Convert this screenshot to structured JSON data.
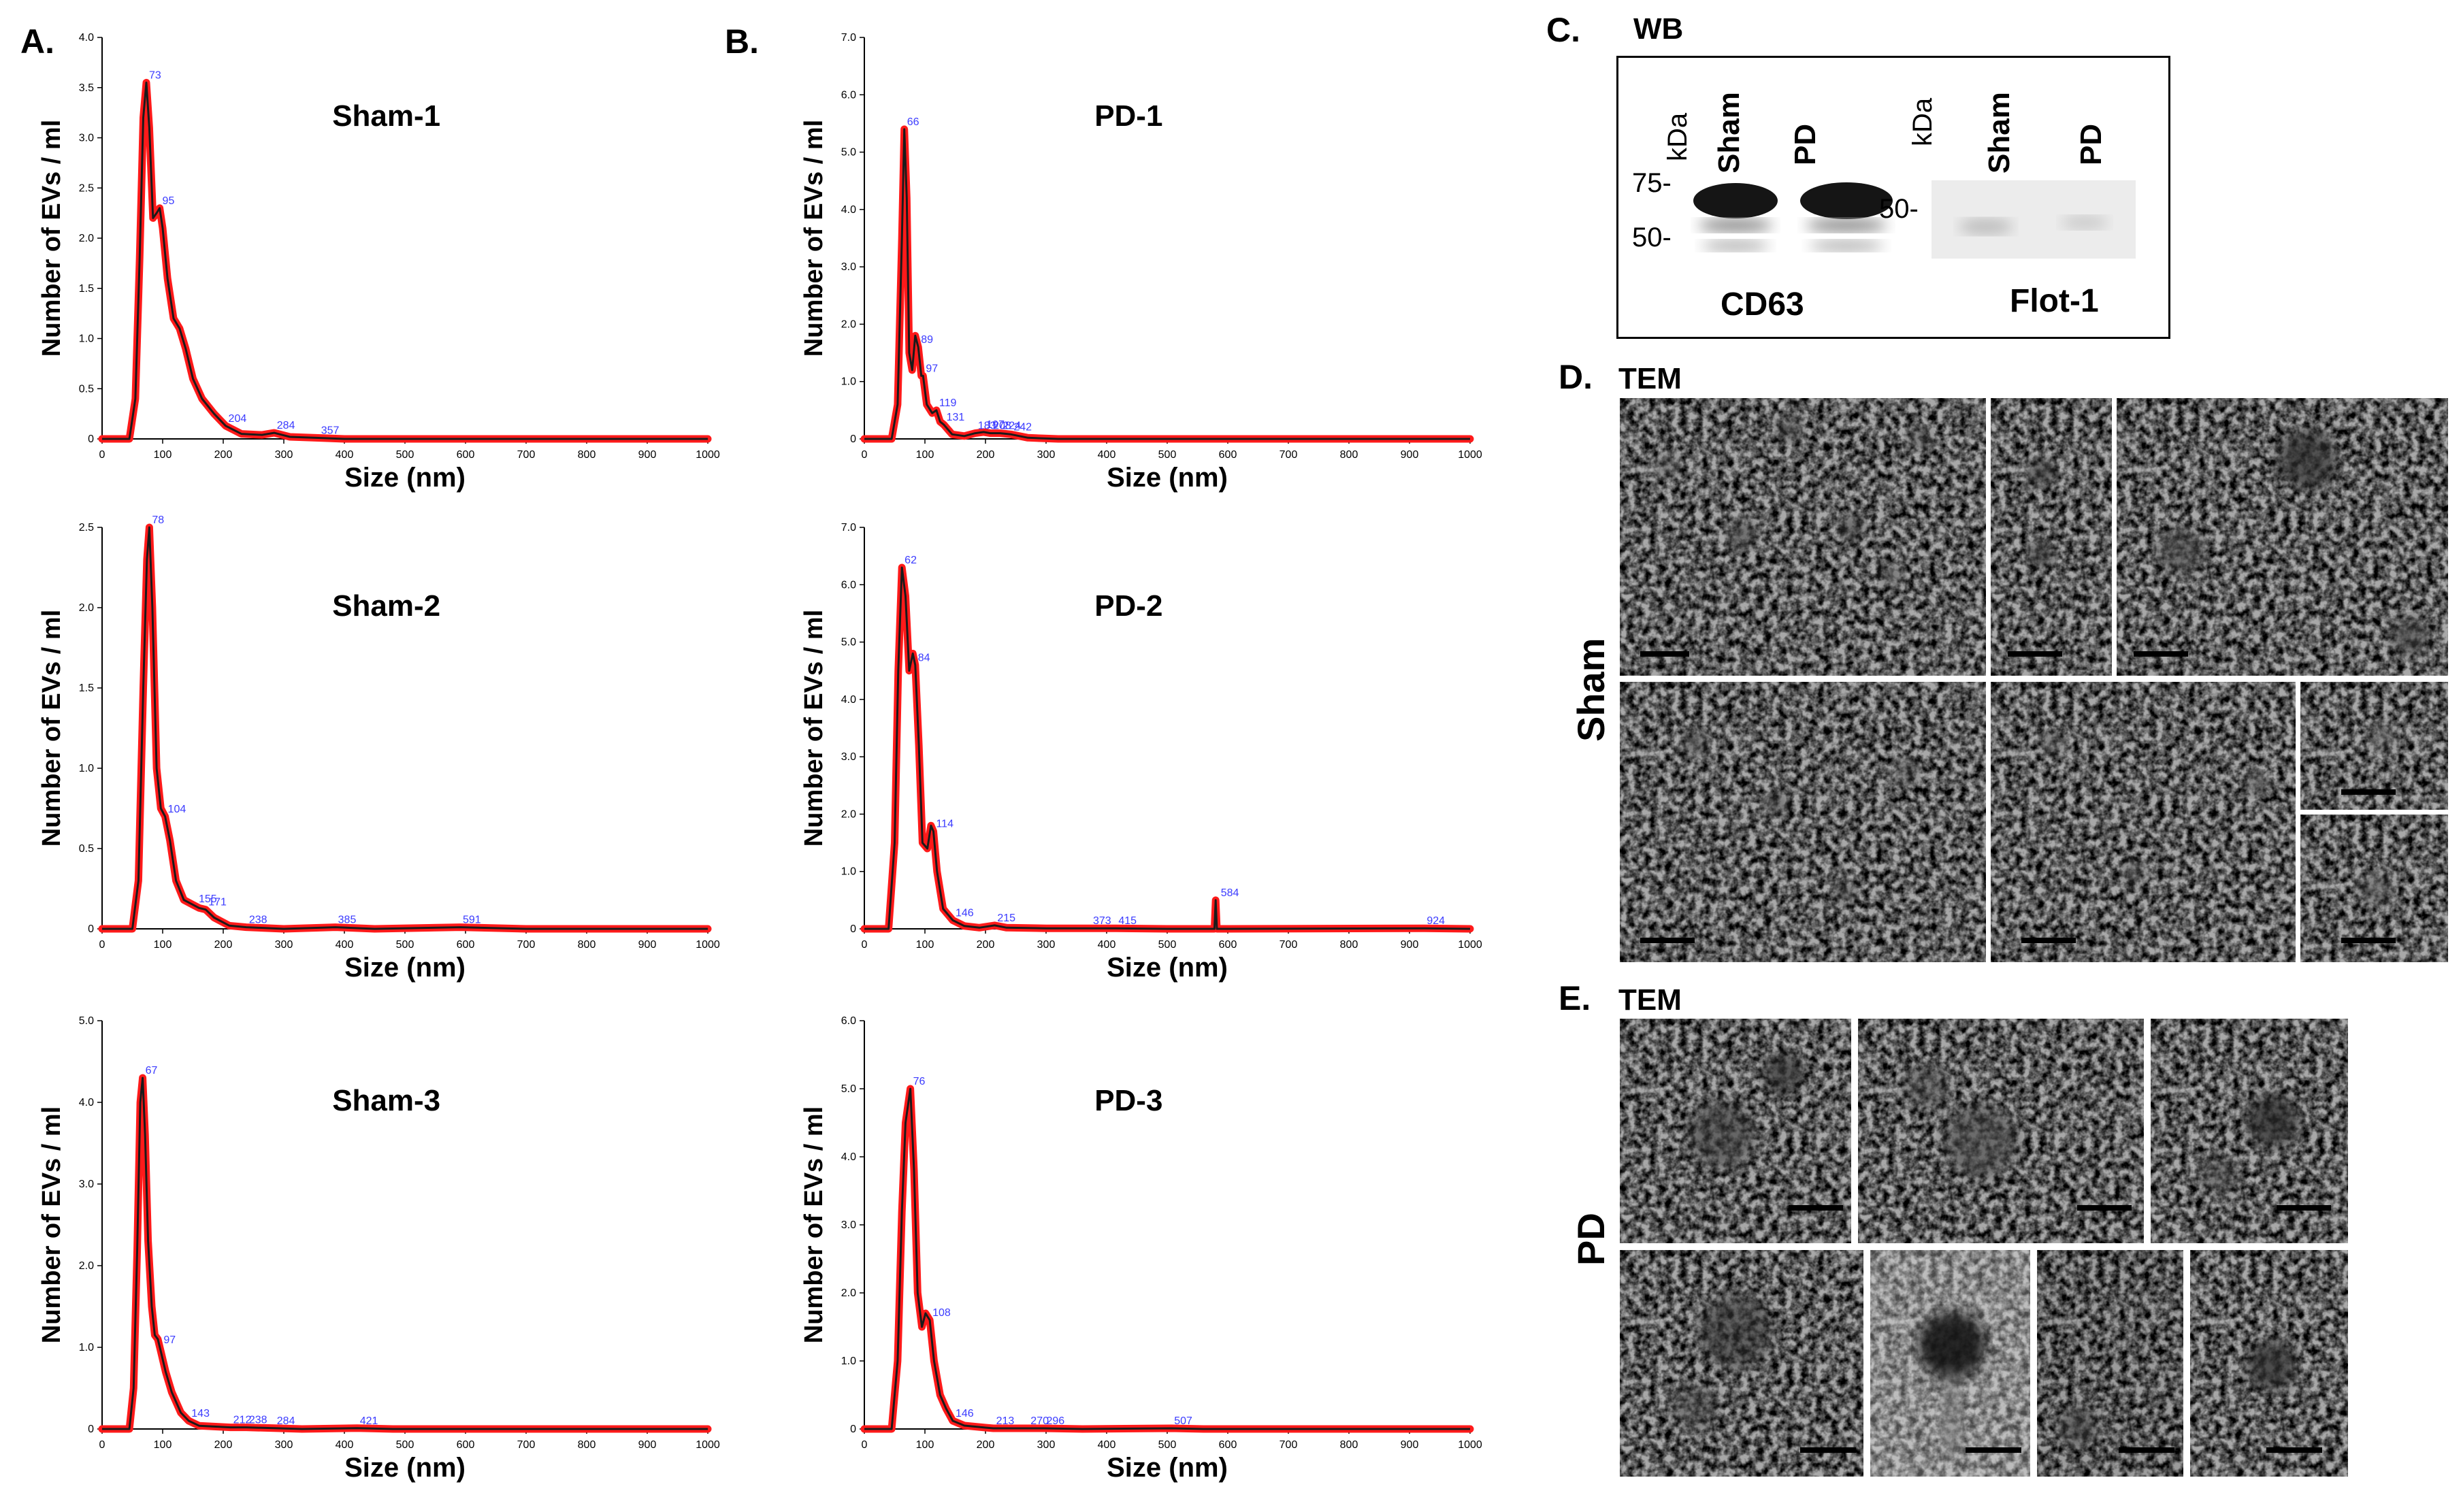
{
  "panels": {
    "A": {
      "letter": "A."
    },
    "B": {
      "letter": "B."
    },
    "C": {
      "letter": "C.",
      "title": "WB"
    },
    "D": {
      "letter": "D.",
      "title": "TEM",
      "side_label": "Sham"
    },
    "E": {
      "letter": "E.",
      "title": "TEM",
      "side_label": "PD"
    }
  },
  "western_blot": {
    "unit": "kDa",
    "left": {
      "lanes": [
        "Sham",
        "PD"
      ],
      "markers": [
        "75-",
        "50-"
      ],
      "protein": "CD63"
    },
    "right": {
      "lanes": [
        "Sham",
        "PD"
      ],
      "markers": [
        "50-"
      ],
      "protein": "Flot-1"
    }
  },
  "colors": {
    "band": "#ff1a1a",
    "mean_line": "#1a1a1a",
    "peak_label": "#3b3bff",
    "tem_gray": "#a8a8a8"
  },
  "chart_data": [
    {
      "id": "sham1",
      "type": "line",
      "title": "Sham-1",
      "xlabel": "Size (nm)",
      "ylabel": "Number of EVs / ml",
      "xlim": [
        0,
        1000
      ],
      "ylim": [
        0,
        4.0
      ],
      "xticks": [
        "0",
        "100",
        "200",
        "300",
        "400",
        "500",
        "600",
        "700",
        "800",
        "900",
        "1000"
      ],
      "yticks": [
        "0",
        "0.5",
        "1.0",
        "1.5",
        "2.0",
        "2.5",
        "3.0",
        "3.5",
        "4.0"
      ],
      "series": [
        {
          "points": [
            [
              0,
              0
            ],
            [
              45,
              0
            ],
            [
              55,
              0.4
            ],
            [
              62,
              1.8
            ],
            [
              68,
              3.2
            ],
            [
              73,
              3.55
            ],
            [
              78,
              3.1
            ],
            [
              84,
              2.2
            ],
            [
              90,
              2.25
            ],
            [
              95,
              2.3
            ],
            [
              100,
              2.1
            ],
            [
              108,
              1.6
            ],
            [
              118,
              1.2
            ],
            [
              128,
              1.1
            ],
            [
              138,
              0.9
            ],
            [
              150,
              0.6
            ],
            [
              165,
              0.4
            ],
            [
              185,
              0.25
            ],
            [
              204,
              0.13
            ],
            [
              230,
              0.05
            ],
            [
              264,
              0.04
            ],
            [
              284,
              0.06
            ],
            [
              310,
              0.02
            ],
            [
              357,
              0.01
            ],
            [
              400,
              0
            ],
            [
              1000,
              0
            ]
          ]
        }
      ],
      "peaks": [
        {
          "x": 73,
          "y": 3.55,
          "label": "73"
        },
        {
          "x": 95,
          "y": 2.3,
          "label": "95"
        },
        {
          "x": 204,
          "y": 0.13,
          "label": "204"
        },
        {
          "x": 284,
          "y": 0.06,
          "label": "284"
        },
        {
          "x": 357,
          "y": 0.01,
          "label": "357"
        }
      ]
    },
    {
      "id": "sham2",
      "type": "line",
      "title": "Sham-2",
      "xlabel": "Size (nm)",
      "ylabel": "Number of EVs / ml",
      "xlim": [
        0,
        1000
      ],
      "ylim": [
        0,
        2.5
      ],
      "xticks": [
        "0",
        "100",
        "200",
        "300",
        "400",
        "500",
        "600",
        "700",
        "800",
        "900",
        "1000"
      ],
      "yticks": [
        "0",
        "0.5",
        "1.0",
        "1.5",
        "2.0",
        "2.5"
      ],
      "series": [
        {
          "points": [
            [
              0,
              0
            ],
            [
              50,
              0
            ],
            [
              60,
              0.3
            ],
            [
              68,
              1.5
            ],
            [
              74,
              2.3
            ],
            [
              78,
              2.5
            ],
            [
              83,
              2.0
            ],
            [
              90,
              1.0
            ],
            [
              97,
              0.75
            ],
            [
              104,
              0.7
            ],
            [
              112,
              0.55
            ],
            [
              122,
              0.3
            ],
            [
              135,
              0.18
            ],
            [
              150,
              0.15
            ],
            [
              160,
              0.13
            ],
            [
              171,
              0.12
            ],
            [
              185,
              0.07
            ],
            [
              210,
              0.02
            ],
            [
              238,
              0.01
            ],
            [
              300,
              0
            ],
            [
              385,
              0.01
            ],
            [
              450,
              0
            ],
            [
              591,
              0.01
            ],
            [
              700,
              0
            ],
            [
              1000,
              0
            ]
          ]
        }
      ],
      "peaks": [
        {
          "x": 78,
          "y": 2.5,
          "label": "78"
        },
        {
          "x": 104,
          "y": 0.7,
          "label": "104"
        },
        {
          "x": 155,
          "y": 0.14,
          "label": "155"
        },
        {
          "x": 171,
          "y": 0.12,
          "label": "171"
        },
        {
          "x": 238,
          "y": 0.01,
          "label": "238"
        },
        {
          "x": 385,
          "y": 0.01,
          "label": "385"
        },
        {
          "x": 591,
          "y": 0.01,
          "label": "591"
        }
      ]
    },
    {
      "id": "sham3",
      "type": "line",
      "title": "Sham-3",
      "xlabel": "Size (nm)",
      "ylabel": "Number of EVs / ml",
      "xlim": [
        0,
        1000
      ],
      "ylim": [
        0,
        5.0
      ],
      "xticks": [
        "0",
        "100",
        "200",
        "300",
        "400",
        "500",
        "600",
        "700",
        "800",
        "900",
        "1000"
      ],
      "yticks": [
        "0",
        "1.0",
        "2.0",
        "3.0",
        "4.0",
        "5.0"
      ],
      "series": [
        {
          "points": [
            [
              0,
              0
            ],
            [
              45,
              0
            ],
            [
              52,
              0.5
            ],
            [
              58,
              2.2
            ],
            [
              63,
              4.0
            ],
            [
              67,
              4.3
            ],
            [
              71,
              3.6
            ],
            [
              76,
              2.3
            ],
            [
              82,
              1.5
            ],
            [
              87,
              1.15
            ],
            [
              92,
              1.1
            ],
            [
              97,
              0.95
            ],
            [
              105,
              0.7
            ],
            [
              115,
              0.45
            ],
            [
              130,
              0.2
            ],
            [
              143,
              0.1
            ],
            [
              160,
              0.04
            ],
            [
              212,
              0.02
            ],
            [
              238,
              0.02
            ],
            [
              284,
              0.01
            ],
            [
              330,
              0
            ],
            [
              421,
              0.01
            ],
            [
              480,
              0
            ],
            [
              1000,
              0
            ]
          ]
        }
      ],
      "peaks": [
        {
          "x": 67,
          "y": 4.3,
          "label": "67"
        },
        {
          "x": 97,
          "y": 1.0,
          "label": "97"
        },
        {
          "x": 143,
          "y": 0.1,
          "label": "143"
        },
        {
          "x": 212,
          "y": 0.02,
          "label": "212"
        },
        {
          "x": 238,
          "y": 0.02,
          "label": "238"
        },
        {
          "x": 284,
          "y": 0.01,
          "label": "284"
        },
        {
          "x": 421,
          "y": 0.01,
          "label": "421"
        }
      ]
    },
    {
      "id": "pd1",
      "type": "line",
      "title": "PD-1",
      "xlabel": "Size (nm)",
      "ylabel": "Number of EVs / ml",
      "xlim": [
        0,
        1000
      ],
      "ylim": [
        0,
        7.0
      ],
      "xticks": [
        "0",
        "100",
        "200",
        "300",
        "400",
        "500",
        "600",
        "700",
        "800",
        "900",
        "1000"
      ],
      "yticks": [
        "0",
        "1.0",
        "2.0",
        "3.0",
        "4.0",
        "5.0",
        "6.0",
        "7.0"
      ],
      "series": [
        {
          "points": [
            [
              0,
              0
            ],
            [
              45,
              0
            ],
            [
              55,
              0.6
            ],
            [
              62,
              3.5
            ],
            [
              66,
              5.4
            ],
            [
              70,
              4.2
            ],
            [
              74,
              1.5
            ],
            [
              79,
              1.2
            ],
            [
              84,
              1.8
            ],
            [
              89,
              1.6
            ],
            [
              94,
              1.1
            ],
            [
              97,
              1.1
            ],
            [
              103,
              0.6
            ],
            [
              112,
              0.45
            ],
            [
              119,
              0.5
            ],
            [
              125,
              0.3
            ],
            [
              131,
              0.25
            ],
            [
              145,
              0.08
            ],
            [
              165,
              0.05
            ],
            [
              183,
              0.1
            ],
            [
              197,
              0.12
            ],
            [
              208,
              0.1
            ],
            [
              224,
              0.1
            ],
            [
              242,
              0.08
            ],
            [
              270,
              0.02
            ],
            [
              320,
              0
            ],
            [
              1000,
              0
            ]
          ]
        }
      ],
      "peaks": [
        {
          "x": 66,
          "y": 5.4,
          "label": "66"
        },
        {
          "x": 89,
          "y": 1.6,
          "label": "89"
        },
        {
          "x": 97,
          "y": 1.1,
          "label": "97"
        },
        {
          "x": 119,
          "y": 0.5,
          "label": "119"
        },
        {
          "x": 131,
          "y": 0.25,
          "label": "131"
        },
        {
          "x": 183,
          "y": 0.1,
          "label": "183"
        },
        {
          "x": 197,
          "y": 0.12,
          "label": "197"
        },
        {
          "x": 208,
          "y": 0.1,
          "label": "208"
        },
        {
          "x": 224,
          "y": 0.1,
          "label": "224"
        },
        {
          "x": 242,
          "y": 0.08,
          "label": "242"
        }
      ]
    },
    {
      "id": "pd2",
      "type": "line",
      "title": "PD-2",
      "xlabel": "Size (nm)",
      "ylabel": "Number of EVs / ml",
      "xlim": [
        0,
        1000
      ],
      "ylim": [
        0,
        7.0
      ],
      "xticks": [
        "0",
        "100",
        "200",
        "300",
        "400",
        "500",
        "600",
        "700",
        "800",
        "900",
        "1000"
      ],
      "yticks": [
        "0",
        "1.0",
        "2.0",
        "3.0",
        "4.0",
        "5.0",
        "6.0",
        "7.0"
      ],
      "series": [
        {
          "points": [
            [
              0,
              0
            ],
            [
              40,
              0
            ],
            [
              50,
              1.5
            ],
            [
              56,
              4.5
            ],
            [
              62,
              6.3
            ],
            [
              68,
              5.8
            ],
            [
              74,
              4.5
            ],
            [
              80,
              4.8
            ],
            [
              84,
              4.6
            ],
            [
              90,
              3.2
            ],
            [
              96,
              1.5
            ],
            [
              104,
              1.4
            ],
            [
              110,
              1.8
            ],
            [
              114,
              1.7
            ],
            [
              120,
              1.0
            ],
            [
              130,
              0.35
            ],
            [
              146,
              0.15
            ],
            [
              165,
              0.05
            ],
            [
              190,
              0.02
            ],
            [
              215,
              0.06
            ],
            [
              235,
              0.02
            ],
            [
              300,
              0.01
            ],
            [
              373,
              0.01
            ],
            [
              415,
              0.01
            ],
            [
              500,
              0
            ],
            [
              578,
              0
            ],
            [
              580,
              0.5
            ],
            [
              582,
              0
            ],
            [
              600,
              0
            ],
            [
              924,
              0.01
            ],
            [
              1000,
              0
            ]
          ]
        }
      ],
      "peaks": [
        {
          "x": 62,
          "y": 6.3,
          "label": "62"
        },
        {
          "x": 84,
          "y": 4.6,
          "label": "84"
        },
        {
          "x": 114,
          "y": 1.7,
          "label": "114"
        },
        {
          "x": 146,
          "y": 0.15,
          "label": "146"
        },
        {
          "x": 215,
          "y": 0.06,
          "label": "215"
        },
        {
          "x": 373,
          "y": 0.01,
          "label": "373"
        },
        {
          "x": 415,
          "y": 0.01,
          "label": "415"
        },
        {
          "x": 584,
          "y": 0.5,
          "label": "584"
        },
        {
          "x": 924,
          "y": 0.01,
          "label": "924"
        }
      ]
    },
    {
      "id": "pd3",
      "type": "line",
      "title": "PD-3",
      "xlabel": "Size (nm)",
      "ylabel": "Number of EVs / ml",
      "xlim": [
        0,
        1000
      ],
      "ylim": [
        0,
        6.0
      ],
      "xticks": [
        "0",
        "100",
        "200",
        "300",
        "400",
        "500",
        "600",
        "700",
        "800",
        "900",
        "1000"
      ],
      "yticks": [
        "0",
        "1.0",
        "2.0",
        "3.0",
        "4.0",
        "5.0",
        "6.0"
      ],
      "series": [
        {
          "points": [
            [
              0,
              0
            ],
            [
              45,
              0
            ],
            [
              55,
              1.0
            ],
            [
              62,
              3.2
            ],
            [
              68,
              4.5
            ],
            [
              76,
              5.0
            ],
            [
              82,
              3.8
            ],
            [
              88,
              2.0
            ],
            [
              95,
              1.5
            ],
            [
              101,
              1.7
            ],
            [
              108,
              1.6
            ],
            [
              115,
              1.0
            ],
            [
              125,
              0.5
            ],
            [
              135,
              0.3
            ],
            [
              146,
              0.12
            ],
            [
              165,
              0.05
            ],
            [
              200,
              0.02
            ],
            [
              213,
              0.01
            ],
            [
              270,
              0.01
            ],
            [
              296,
              0.01
            ],
            [
              360,
              0
            ],
            [
              507,
              0.01
            ],
            [
              560,
              0
            ],
            [
              1000,
              0
            ]
          ]
        }
      ],
      "peaks": [
        {
          "x": 76,
          "y": 5.0,
          "label": "76"
        },
        {
          "x": 108,
          "y": 1.6,
          "label": "108"
        },
        {
          "x": 146,
          "y": 0.12,
          "label": "146"
        },
        {
          "x": 213,
          "y": 0.01,
          "label": "213"
        },
        {
          "x": 270,
          "y": 0.01,
          "label": "270"
        },
        {
          "x": 296,
          "y": 0.01,
          "label": "296"
        },
        {
          "x": 507,
          "y": 0.01,
          "label": "507"
        }
      ]
    }
  ]
}
